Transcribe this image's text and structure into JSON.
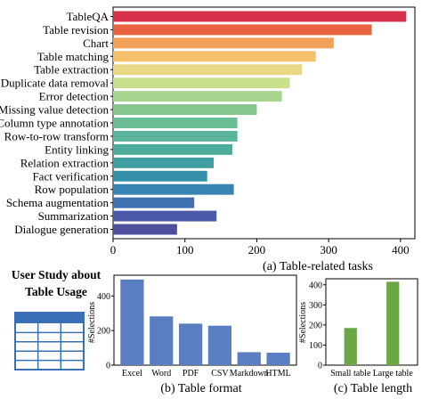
{
  "chart_data": [
    {
      "type": "bar",
      "orientation": "horizontal",
      "categories": [
        "TableQA",
        "Table revision",
        "Chart",
        "Table matching",
        "Table extraction",
        "Duplicate data removal",
        "Error detection",
        "Missing value detection",
        "Column type annotation",
        "Row-to-row transform",
        "Entity linking",
        "Relation extraction",
        "Fact verification",
        "Row population",
        "Schema augmentation",
        "Summarization",
        "Dialogue generation"
      ],
      "values": [
        408,
        360,
        307,
        282,
        263,
        246,
        235,
        200,
        173,
        173,
        166,
        140,
        131,
        168,
        113,
        144,
        89
      ],
      "colors": [
        "#d7304a",
        "#e8633f",
        "#f1a05a",
        "#f6bf6c",
        "#e8d886",
        "#c9df8c",
        "#a7d48f",
        "#86c68f",
        "#6bbd95",
        "#5bb59a",
        "#4dab9d",
        "#3e9ea2",
        "#3591aa",
        "#3784b2",
        "#3f71b1",
        "#4a5aa9",
        "#4f4f9f"
      ],
      "xlim": [
        0,
        420
      ],
      "xticks": [
        0,
        100,
        200,
        300,
        400
      ],
      "caption": "(a) Table-related tasks"
    },
    {
      "type": "bar",
      "categories": [
        "Excel",
        "Word",
        "PDF",
        "CSV",
        "Markdown",
        "HTML"
      ],
      "values": [
        495,
        282,
        240,
        228,
        75,
        72
      ],
      "color": "#5b7ec2",
      "ylabel": "#Selections",
      "ylim": [
        0,
        520
      ],
      "yticks": [
        0,
        200,
        400
      ],
      "caption": "(b) Table format"
    },
    {
      "type": "bar",
      "categories": [
        "Small table",
        "Large table"
      ],
      "values": [
        185,
        415
      ],
      "color": "#6aa843",
      "ylabel": "#Selections",
      "ylim": [
        0,
        430
      ],
      "yticks": [
        0,
        100,
        200,
        300,
        400
      ],
      "caption": "(c) Table length"
    }
  ],
  "study": {
    "title": "User Study about Table Usage",
    "icon": "table-grid-icon"
  }
}
